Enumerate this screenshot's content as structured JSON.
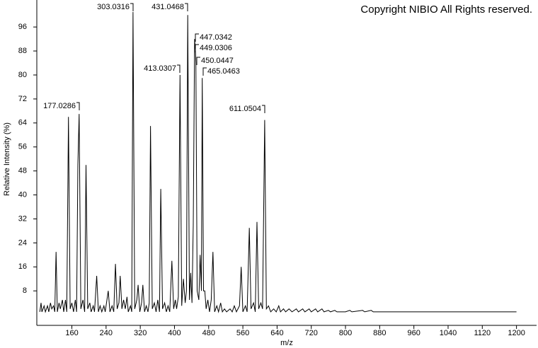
{
  "chart_data": {
    "type": "line",
    "title": "Copyright NIBIO All Rights reserved.",
    "x_label": "m/z",
    "y_label": "Relative Intensity (%)",
    "color": "#000000",
    "xlim": [
      78,
      1247
    ],
    "ylim": [
      -3.5,
      105
    ],
    "xticks": [
      160,
      240,
      320,
      400,
      480,
      560,
      640,
      720,
      800,
      880,
      960,
      1040,
      1120,
      1200
    ],
    "yticks": [
      8,
      16,
      24,
      32,
      40,
      48,
      56,
      64,
      72,
      80,
      88,
      96
    ],
    "peak_labels": [
      "177.0286",
      "303.0316",
      "431.0468",
      "447.0342",
      "449.0306",
      "450.0447",
      "413.0307",
      "465.0463",
      "611.0504"
    ],
    "x": [
      85,
      88,
      90,
      95,
      98,
      103,
      106,
      110,
      113,
      117,
      120,
      123,
      126,
      130,
      133,
      138,
      141,
      145,
      148,
      152,
      156,
      160,
      164,
      168,
      171,
      174,
      177,
      181,
      186,
      190,
      193,
      197,
      202,
      205,
      210,
      213,
      218,
      222,
      226,
      230,
      235,
      238,
      245,
      249,
      254,
      258,
      262,
      266,
      270,
      273,
      277,
      281,
      285,
      289,
      292,
      297,
      300,
      303,
      307,
      312,
      315,
      319,
      323,
      326,
      330,
      334,
      338,
      341,
      344,
      348,
      353,
      357,
      361,
      365,
      368,
      372,
      377,
      381,
      385,
      389,
      394,
      398,
      402,
      405,
      409,
      413,
      417,
      421,
      425,
      428,
      431,
      435,
      438,
      441,
      444,
      447,
      449,
      450,
      453,
      457,
      460,
      463,
      465,
      468,
      471,
      474,
      478,
      482,
      486,
      490,
      494,
      499,
      503,
      508,
      512,
      517,
      522,
      530,
      535,
      540,
      545,
      552,
      556,
      560,
      566,
      570,
      575,
      579,
      585,
      589,
      593,
      597,
      602,
      606,
      611,
      615,
      620,
      625,
      632,
      638,
      644,
      648,
      655,
      660,
      668,
      675,
      685,
      690,
      700,
      705,
      715,
      720,
      730,
      735,
      745,
      750,
      760,
      765,
      775,
      780,
      800,
      810,
      815,
      840,
      845,
      860,
      865,
      870,
      1200
    ],
    "y": [
      1,
      4,
      1,
      3,
      1,
      3,
      1,
      4,
      2,
      3,
      1,
      21,
      1,
      4,
      2,
      5,
      1,
      5,
      1,
      66,
      2,
      4,
      1,
      5,
      1,
      50,
      67,
      2,
      5,
      1,
      50,
      2,
      4,
      1,
      3,
      1,
      13,
      1,
      3,
      1,
      3,
      1,
      8,
      1,
      3,
      1,
      17,
      2,
      4,
      13,
      2,
      5,
      2,
      6,
      1,
      3,
      1,
      101,
      2,
      5,
      10,
      1,
      4,
      10,
      1,
      3,
      1,
      4,
      63,
      2,
      4,
      1,
      5,
      1,
      42,
      2,
      4,
      1,
      3,
      1,
      18,
      2,
      5,
      2,
      6,
      80,
      3,
      12,
      4,
      8,
      100,
      5,
      14,
      4,
      30,
      92,
      88,
      84,
      8,
      5,
      20,
      8,
      79,
      8,
      8,
      2,
      5,
      1,
      5,
      21,
      1,
      3,
      1,
      4,
      1,
      2,
      1,
      2,
      1,
      3,
      1,
      3,
      16,
      1,
      3,
      1,
      29,
      2,
      4,
      1,
      31,
      2,
      4,
      2,
      65,
      2,
      3,
      1,
      2,
      1,
      3,
      1,
      2,
      1,
      2,
      1,
      2,
      1,
      2,
      1,
      2,
      1,
      2,
      1,
      2,
      1,
      1.5,
      1,
      1.5,
      1,
      1,
      1.5,
      1,
      1.5,
      1,
      1.5,
      1,
      1,
      1
    ]
  }
}
